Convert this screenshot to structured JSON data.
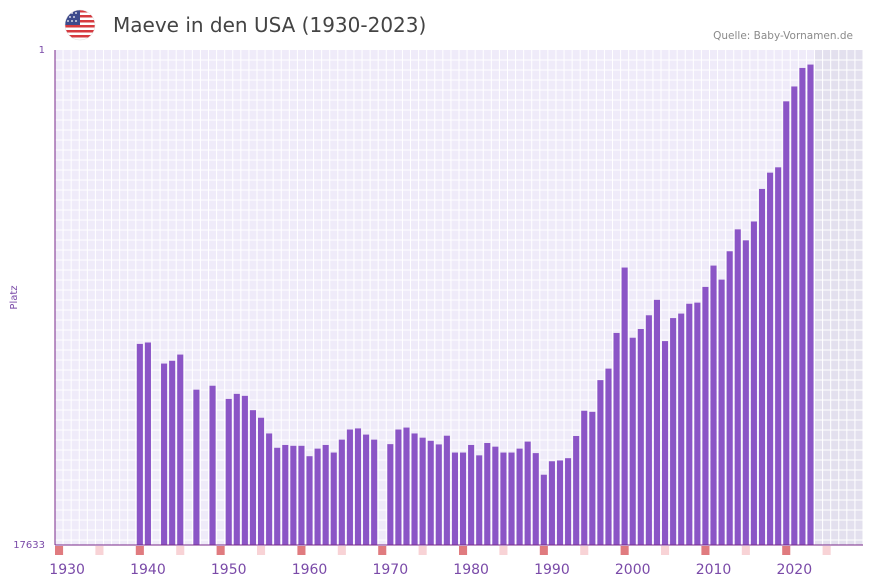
{
  "header": {
    "title": "Maeve in den USA (1930-2023)",
    "source": "Quelle: Baby-Vornamen.de",
    "flag_icon": "us-flag-icon"
  },
  "colors": {
    "bar": "#8b55c6",
    "plot_bg": "#efebf9",
    "future_bg": "#e3e0ee",
    "grid": "#ffffff",
    "axis": "#7a2a8a",
    "tick_label": "#7a4aa8",
    "marker_decade": "#e07b7f",
    "marker_half": "#f8d3d6"
  },
  "chart_data": {
    "type": "bar",
    "title": "Maeve in den USA (1930-2023)",
    "xlabel": "",
    "ylabel": "Platz",
    "y_axis_reversed": true,
    "ylim": [
      17633,
      1
    ],
    "y_tick_labels": [
      "1",
      "17633"
    ],
    "x_range": [
      1929,
      2029
    ],
    "x_tick_labels": [
      "1930",
      "1940",
      "1950",
      "1960",
      "1970",
      "1980",
      "1990",
      "2000",
      "2010",
      "2020"
    ],
    "x_tick_values": [
      1930,
      1940,
      1950,
      1960,
      1970,
      1980,
      1990,
      2000,
      2010,
      2020
    ],
    "future_from": 2023,
    "series": [
      {
        "name": "Maeve",
        "x": [
          1939,
          1940,
          1942,
          1943,
          1944,
          1946,
          1948,
          1950,
          1951,
          1952,
          1953,
          1954,
          1955,
          1956,
          1957,
          1958,
          1959,
          1960,
          1961,
          1962,
          1963,
          1964,
          1965,
          1966,
          1967,
          1968,
          1970,
          1971,
          1972,
          1973,
          1974,
          1975,
          1976,
          1977,
          1978,
          1979,
          1980,
          1981,
          1982,
          1983,
          1984,
          1985,
          1986,
          1987,
          1988,
          1989,
          1990,
          1991,
          1992,
          1993,
          1994,
          1995,
          1996,
          1997,
          1998,
          1999,
          2000,
          2001,
          2002,
          2003,
          2004,
          2005,
          2006,
          2007,
          2008,
          2009,
          2010,
          2011,
          2012,
          2013,
          2014,
          2015,
          2016,
          2017,
          2018,
          2019,
          2020,
          2021,
          2022
        ],
        "values": [
          10470,
          10420,
          11170,
          11070,
          10850,
          12100,
          11960,
          12430,
          12250,
          12320,
          12830,
          13100,
          13660,
          14170,
          14070,
          14100,
          14100,
          14470,
          14200,
          14070,
          14340,
          13880,
          13520,
          13480,
          13700,
          13880,
          14040,
          13520,
          13450,
          13660,
          13810,
          13920,
          14050,
          13740,
          14340,
          14340,
          14070,
          14440,
          14000,
          14130,
          14340,
          14340,
          14200,
          13950,
          14360,
          15130,
          14650,
          14620,
          14540,
          13750,
          12850,
          12890,
          11760,
          11350,
          10080,
          7750,
          10250,
          9940,
          9450,
          8900,
          10370,
          9550,
          9390,
          9040,
          9000,
          8440,
          7680,
          8180,
          7170,
          6390,
          6780,
          6110,
          4950,
          4370,
          4180,
          1830,
          1300,
          640,
          520
        ]
      }
    ]
  }
}
